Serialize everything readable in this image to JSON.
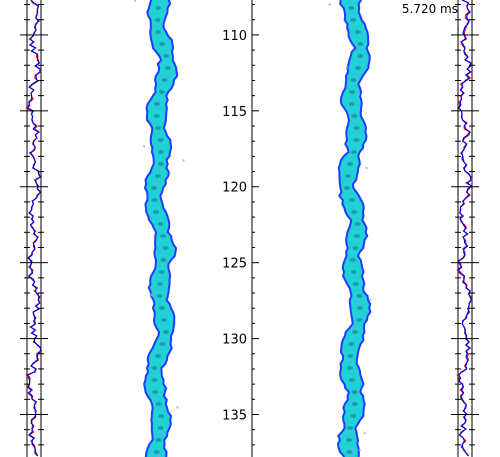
{
  "time_label": "5.720 ms",
  "colors": {
    "profile_primary": "#0000dd",
    "profile_secondary": "#dd0000",
    "jet_outline": "#1f3cff",
    "jet_fill": "#22d0d8",
    "jet_core": "#1a7a8a",
    "axis": "#000000"
  },
  "chart_data": {
    "type": "line",
    "title": "",
    "xlabel": "",
    "ylabel": "",
    "y_axis_inverted": true,
    "ylim": [
      107.7,
      137.8
    ],
    "y_ticks": [
      110,
      115,
      120,
      125,
      130,
      135
    ],
    "y_tick_labels": [
      "110",
      "115",
      "120",
      "125",
      "130",
      "135"
    ],
    "minor_tick_step": 1,
    "panels": [
      "left-profile",
      "jet-field-1",
      "center-axis",
      "jet-field-2",
      "right-profile"
    ],
    "grid": false,
    "legend": "none"
  }
}
